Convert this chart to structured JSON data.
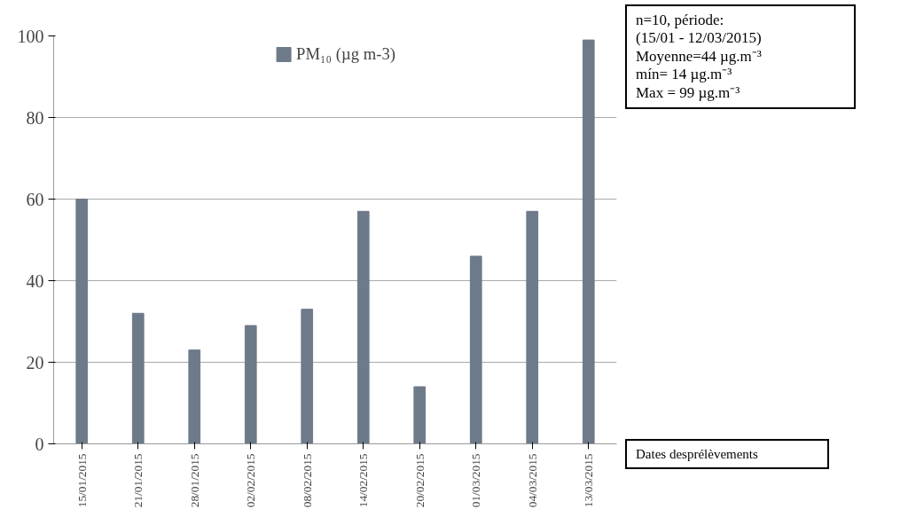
{
  "chart_data": {
    "type": "bar",
    "categories": [
      "15/01/2015",
      "21/01/2015",
      "28/01/2015",
      "02/02/2015",
      "08/02/2015",
      "14/02/2015",
      "20/02/2015",
      "01/03/2015",
      "04/03/2015",
      "13/03/2015"
    ],
    "series": [
      {
        "name": "PM₁₀ (µg m-3)",
        "color": "#6d7a89",
        "values": [
          60,
          32,
          23,
          29,
          33,
          57,
          14,
          46,
          57,
          99
        ]
      }
    ],
    "ylim": [
      0,
      100
    ],
    "yticks": [
      0,
      20,
      40,
      60,
      80,
      100
    ],
    "grid": "y",
    "legend": "top",
    "xlabel": "Dates desprélèvements",
    "annotations": [
      "n=10, période:",
      "(15/01 - 12/03/2015)",
      "Moyenne=44 µg.m⁻³",
      "mín= 14 µg.m⁻³",
      "Max = 99 µg.m⁻³"
    ]
  }
}
